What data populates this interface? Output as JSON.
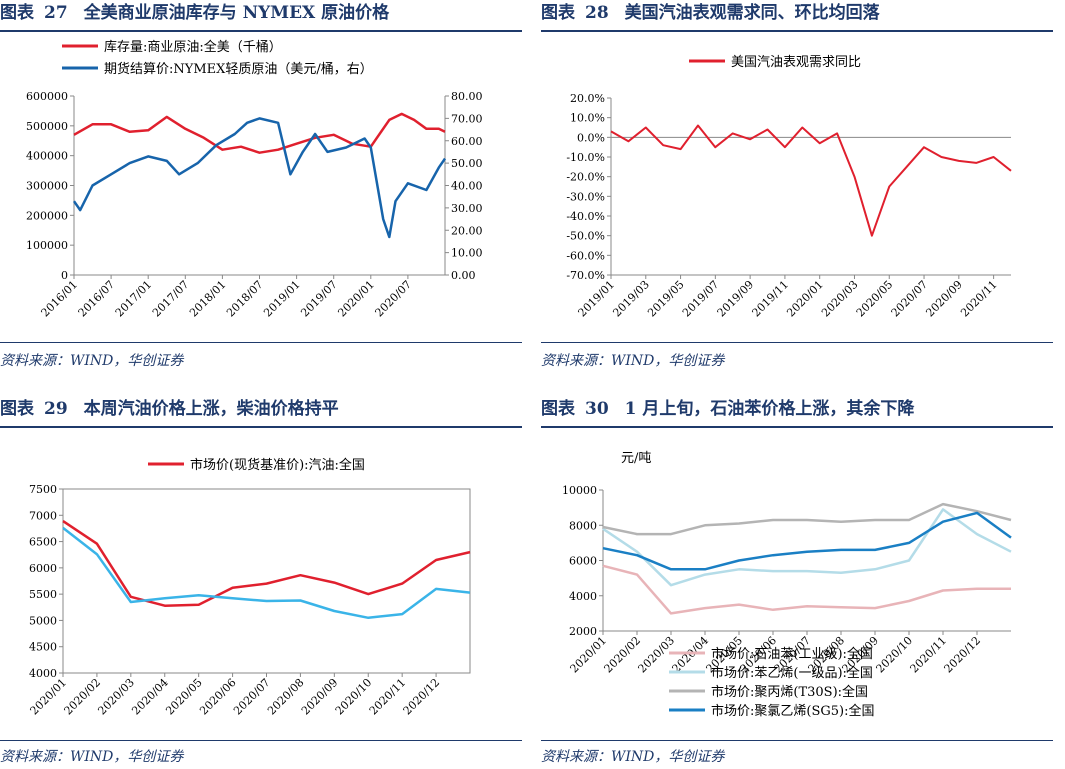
{
  "panels": [
    {
      "prefix": "图表",
      "number": "27",
      "title": "全美商业原油库存与 NYMEX 原油价格",
      "source": "资料来源：WIND，华创证券",
      "chart_data": {
        "type": "line",
        "dual_axis": true,
        "x_ticks": [
          "2016/01",
          "2016/07",
          "2017/01",
          "2017/07",
          "2018/01",
          "2018/07",
          "2019/01",
          "2019/07",
          "2020/01",
          "2020/07"
        ],
        "x_range": [
          "2016/01",
          "2021/01"
        ],
        "y_left": {
          "ticks": [
            "0",
            "100000",
            "200000",
            "300000",
            "400000",
            "500000",
            "600000"
          ],
          "range": [
            0,
            600000
          ]
        },
        "y_right": {
          "ticks": [
            "0.00",
            "10.00",
            "20.00",
            "30.00",
            "40.00",
            "50.00",
            "60.00",
            "70.00",
            "80.00"
          ],
          "range": [
            0,
            80
          ]
        },
        "legend_position": "top-left",
        "series": [
          {
            "name": "库存量:商业原油:全美（千桶）",
            "axis": "left",
            "color": "#e0202e",
            "x": [
              "2016/01",
              "2016/04",
              "2016/07",
              "2016/10",
              "2017/01",
              "2017/04",
              "2017/07",
              "2017/10",
              "2018/01",
              "2018/04",
              "2018/07",
              "2018/10",
              "2019/01",
              "2019/04",
              "2019/07",
              "2019/10",
              "2020/01",
              "2020/04",
              "2020/06",
              "2020/08",
              "2020/10",
              "2020/12",
              "2021/01"
            ],
            "values": [
              470000,
              505000,
              505000,
              480000,
              485000,
              530000,
              490000,
              460000,
              420000,
              430000,
              410000,
              420000,
              440000,
              460000,
              470000,
              440000,
              430000,
              520000,
              540000,
              520000,
              490000,
              490000,
              480000
            ]
          },
          {
            "name": "期货结算价:NYMEX轻质原油（美元/桶，右）",
            "axis": "right",
            "color": "#1764ab",
            "x": [
              "2016/01",
              "2016/02",
              "2016/04",
              "2016/07",
              "2016/10",
              "2017/01",
              "2017/04",
              "2017/06",
              "2017/09",
              "2017/12",
              "2018/03",
              "2018/05",
              "2018/07",
              "2018/10",
              "2018/12",
              "2019/02",
              "2019/04",
              "2019/06",
              "2019/09",
              "2019/12",
              "2020/01",
              "2020/03",
              "2020/04",
              "2020/05",
              "2020/07",
              "2020/10",
              "2020/12",
              "2021/01"
            ],
            "values": [
              33,
              29,
              40,
              45,
              50,
              53,
              51,
              45,
              50,
              58,
              63,
              68,
              70,
              68,
              45,
              55,
              63,
              55,
              57,
              61,
              57,
              25,
              17,
              33,
              41,
              38,
              48,
              52
            ]
          }
        ]
      }
    },
    {
      "prefix": "图表",
      "number": "28",
      "title": "美国汽油表观需求同、环比均回落",
      "source": "资料来源：WIND，华创证券",
      "chart_data": {
        "type": "line",
        "x_ticks": [
          "2019/01",
          "2019/03",
          "2019/05",
          "2019/07",
          "2019/09",
          "2019/11",
          "2020/01",
          "2020/03",
          "2020/05",
          "2020/07",
          "2020/09",
          "2020/11"
        ],
        "x_range": [
          "2019/01",
          "2020/12"
        ],
        "y_ticks": [
          "20.0%",
          "10.0%",
          "0.0%",
          "-10.0%",
          "-20.0%",
          "-30.0%",
          "-40.0%",
          "-50.0%",
          "-60.0%",
          "-70.0%"
        ],
        "y_range": [
          -70,
          20
        ],
        "legend_position": "top-center",
        "series": [
          {
            "name": "美国汽油表观需求同比",
            "color": "#e0202e",
            "x": [
              "2019/01",
              "2019/02",
              "2019/03",
              "2019/04",
              "2019/05",
              "2019/06",
              "2019/07",
              "2019/08",
              "2019/09",
              "2019/10",
              "2019/11",
              "2019/12",
              "2020/01",
              "2020/02",
              "2020/03",
              "2020/04",
              "2020/05",
              "2020/06",
              "2020/07",
              "2020/08",
              "2020/09",
              "2020/10",
              "2020/11",
              "2020/12"
            ],
            "values": [
              3,
              -2,
              5,
              -4,
              -6,
              6,
              -5,
              2,
              -1,
              4,
              -5,
              5,
              -3,
              2,
              -20,
              -50,
              -25,
              -15,
              -5,
              -10,
              -12,
              -13,
              -10,
              -17
            ]
          }
        ]
      }
    },
    {
      "prefix": "图表",
      "number": "29",
      "title": "本周汽油价格上涨，柴油价格持平",
      "source": "资料来源：WIND，华创证券",
      "chart_data": {
        "type": "line",
        "x_ticks": [
          "2020/01",
          "2020/02",
          "2020/03",
          "2020/04",
          "2020/05",
          "2020/06",
          "2020/07",
          "2020/08",
          "2020/09",
          "2020/10",
          "2020/11",
          "2020/12"
        ],
        "x_range": [
          "2020/01",
          "2021/01"
        ],
        "y_ticks": [
          "4000",
          "4500",
          "5000",
          "5500",
          "6000",
          "6500",
          "7000",
          "7500"
        ],
        "y_range": [
          4000,
          7500
        ],
        "legend_position": "top-right",
        "series": [
          {
            "name": "市场价(现货基准价):汽油:全国",
            "color": "#e0202e",
            "x": [
              "2020/01",
              "2020/02",
              "2020/03",
              "2020/04",
              "2020/05",
              "2020/06",
              "2020/07",
              "2020/08",
              "2020/09",
              "2020/10",
              "2020/11",
              "2020/12",
              "2021/01"
            ],
            "values": [
              6890,
              6460,
              5450,
              5280,
              5300,
              5620,
              5700,
              5860,
              5720,
              5500,
              5700,
              6150,
              6300
            ]
          },
          {
            "name": "",
            "color": "#3ab4e8",
            "x": [
              "2020/01",
              "2020/02",
              "2020/03",
              "2020/04",
              "2020/05",
              "2020/06",
              "2020/07",
              "2020/08",
              "2020/09",
              "2020/10",
              "2020/11",
              "2020/12",
              "2021/01"
            ],
            "values": [
              6760,
              6260,
              5350,
              5420,
              5480,
              5420,
              5370,
              5380,
              5180,
              5050,
              5120,
              5600,
              5530
            ]
          }
        ]
      }
    },
    {
      "prefix": "图表",
      "number": "30",
      "title": "1 月上旬，石油苯价格上涨，其余下降",
      "source": "资料来源：WIND，华创证券",
      "chart_data": {
        "type": "line",
        "unit_label": "元/吨",
        "x_ticks": [
          "2020/01",
          "2020/02",
          "2020/03",
          "2020/04",
          "2020/05",
          "2020/06",
          "2020/07",
          "2020/08",
          "2020/09",
          "2020/10",
          "2020/11",
          "2020/12"
        ],
        "x_range": [
          "2020/01",
          "2021/01"
        ],
        "y_ticks": [
          "2000",
          "4000",
          "6000",
          "8000",
          "10000"
        ],
        "y_range": [
          2000,
          10000
        ],
        "legend_position": "bottom",
        "series": [
          {
            "name": "市场价:石油苯(工业级):全国",
            "color": "#e8b4b8",
            "x": [
              "2020/01",
              "2020/02",
              "2020/03",
              "2020/04",
              "2020/05",
              "2020/06",
              "2020/07",
              "2020/08",
              "2020/09",
              "2020/10",
              "2020/11",
              "2020/12",
              "2021/01"
            ],
            "values": [
              5700,
              5200,
              3000,
              3300,
              3500,
              3200,
              3400,
              3350,
              3300,
              3700,
              4300,
              4400,
              4400
            ]
          },
          {
            "name": "市场价:苯乙烯(一级品):全国",
            "color": "#b4dce8",
            "x": [
              "2020/01",
              "2020/02",
              "2020/03",
              "2020/04",
              "2020/05",
              "2020/06",
              "2020/07",
              "2020/08",
              "2020/09",
              "2020/10",
              "2020/11",
              "2020/12",
              "2021/01"
            ],
            "values": [
              7800,
              6500,
              4600,
              5200,
              5500,
              5400,
              5400,
              5300,
              5500,
              6000,
              8900,
              7500,
              6500
            ]
          },
          {
            "name": "市场价:聚丙烯(T30S):全国",
            "color": "#b4b4b4",
            "x": [
              "2020/01",
              "2020/02",
              "2020/03",
              "2020/04",
              "2020/05",
              "2020/06",
              "2020/07",
              "2020/08",
              "2020/09",
              "2020/10",
              "2020/11",
              "2020/12",
              "2021/01"
            ],
            "values": [
              7900,
              7500,
              7500,
              8000,
              8100,
              8300,
              8300,
              8200,
              8300,
              8300,
              9200,
              8800,
              8300
            ]
          },
          {
            "name": "市场价:聚氯乙烯(SG5):全国",
            "color": "#1a7fc4",
            "x": [
              "2020/01",
              "2020/02",
              "2020/03",
              "2020/04",
              "2020/05",
              "2020/06",
              "2020/07",
              "2020/08",
              "2020/09",
              "2020/10",
              "2020/11",
              "2020/12",
              "2021/01"
            ],
            "values": [
              6700,
              6300,
              5500,
              5500,
              6000,
              6300,
              6500,
              6600,
              6600,
              7000,
              8200,
              8700,
              7300
            ]
          }
        ]
      }
    }
  ]
}
